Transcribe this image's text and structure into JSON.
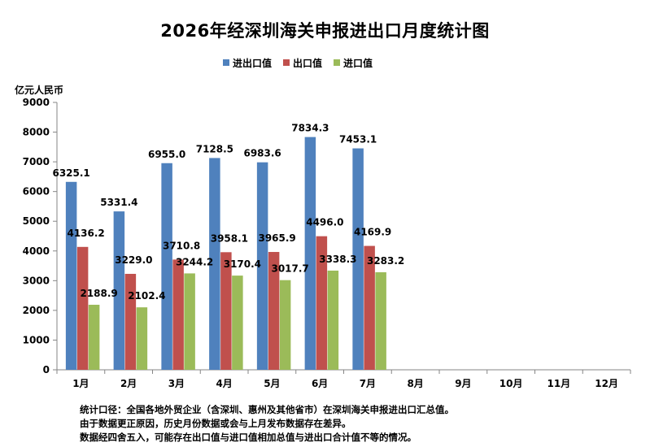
{
  "chart_data": {
    "type": "bar",
    "title": "2026年经深圳海关申报进出口月度统计图",
    "ylabel": "亿元人民币",
    "xlabel": "",
    "categories": [
      "1月",
      "2月",
      "3月",
      "4月",
      "5月",
      "6月",
      "7月",
      "8月",
      "9月",
      "10月",
      "11月",
      "12月"
    ],
    "ylim": [
      0,
      9000
    ],
    "yticks": [
      0,
      1000,
      2000,
      3000,
      4000,
      5000,
      6000,
      7000,
      8000,
      9000
    ],
    "legend_position": "top-center",
    "grid": false,
    "series": [
      {
        "name": "进出口值",
        "color": "#4F81BD",
        "values": [
          6325.1,
          5331.4,
          6955.0,
          7128.5,
          6983.6,
          7834.3,
          7453.1,
          null,
          null,
          null,
          null,
          null
        ]
      },
      {
        "name": "出口值",
        "color": "#C0504D",
        "values": [
          4136.2,
          3229.0,
          3710.8,
          3958.1,
          3965.9,
          4496.0,
          4169.9,
          null,
          null,
          null,
          null,
          null
        ]
      },
      {
        "name": "进口值",
        "color": "#9BBB59",
        "values": [
          2188.9,
          2102.4,
          3244.2,
          3170.4,
          3017.7,
          3338.3,
          3283.2,
          null,
          null,
          null,
          null,
          null
        ]
      }
    ]
  },
  "notes": [
    "统计口径：全国各地外贸企业（含深圳、惠州及其他省市）在深圳海关申报进出口汇总值。",
    "由于数据更正原因，历史月份数据或会与上月发布数据存在差异。",
    "数据经四舍五入，可能存在出口值与进口值相加总值与进出口合计值不等的情况。"
  ]
}
